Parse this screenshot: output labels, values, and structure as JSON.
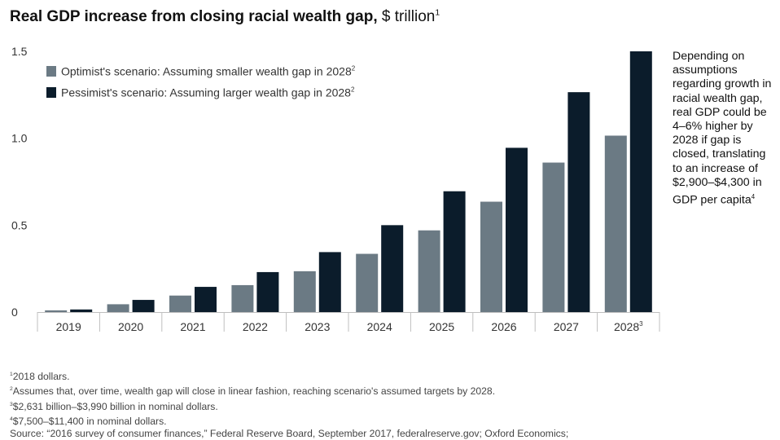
{
  "title": {
    "main": "Real GDP increase from closing racial wealth gap,",
    "unit": "$ trillion",
    "unit_note": "1"
  },
  "colors": {
    "optimist": "#6b7a84",
    "pessimist": "#0b1c2b",
    "axis": "#bfbfbf",
    "text": "#222222"
  },
  "chart_data": {
    "type": "bar",
    "title": "Real GDP increase from closing racial wealth gap, $ trillion",
    "categories": [
      "2019",
      "2020",
      "2021",
      "2022",
      "2023",
      "2024",
      "2025",
      "2026",
      "2027",
      "2028"
    ],
    "category_notes": [
      "",
      "",
      "",
      "",
      "",
      "",
      "",
      "",
      "",
      "3"
    ],
    "series": [
      {
        "name": "Optimist's scenario: Assuming smaller wealth gap in 2028",
        "note": "2",
        "values": [
          0.01,
          0.045,
          0.095,
          0.155,
          0.235,
          0.335,
          0.47,
          0.635,
          0.86,
          1.015
        ]
      },
      {
        "name": "Pessimist's scenario: Assuming larger wealth gap in 2028",
        "note": "2",
        "values": [
          0.015,
          0.07,
          0.145,
          0.23,
          0.345,
          0.5,
          0.695,
          0.945,
          1.265,
          1.5
        ]
      }
    ],
    "yticks": [
      "0",
      "0.5",
      "1.0",
      "1.5"
    ],
    "ytick_values": [
      0,
      0.5,
      1.0,
      1.5
    ],
    "ylim": [
      0,
      1.5
    ],
    "legend_position": "top-left",
    "grid": false
  },
  "annotation": {
    "text": "Depending on assumptions regarding growth in racial wealth gap, real GDP could be 4–6% higher by 2028 if gap is closed, translating to an increase of $2,900–$4,300 in GDP per capita",
    "note": "4"
  },
  "footnotes": [
    {
      "mark": "1",
      "text": "2018 dollars."
    },
    {
      "mark": "2",
      "text": "Assumes that, over time, wealth gap will close in linear fashion, reaching scenario's assumed targets by 2028."
    },
    {
      "mark": "3",
      "text": "$2,631 billion–$3,990 billion in nominal dollars."
    },
    {
      "mark": "4",
      "text": "$7,500–$11,400 in nominal dollars."
    }
  ],
  "source": "Source: “2016 survey of consumer finances,” Federal Reserve Board, September 2017, federalreserve.gov; Oxford Economics;"
}
